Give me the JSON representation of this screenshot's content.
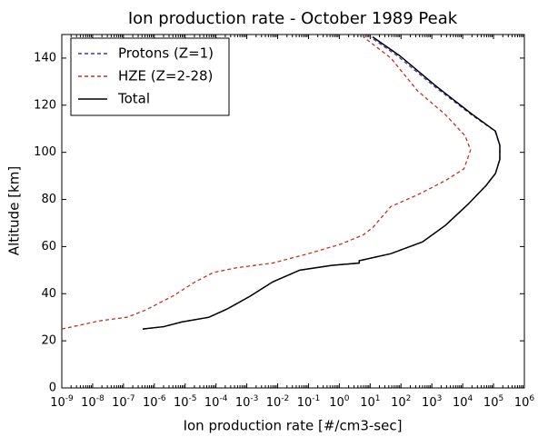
{
  "chart_data": {
    "type": "line",
    "title": "Ion production rate - October 1989 Peak",
    "x_label": "Ion production rate [#/cm3-sec]",
    "y_label": "Altitude [km]",
    "xscale": "log",
    "xlim": [
      1e-09,
      1000000.0
    ],
    "xticks": [
      {
        "value": 1e-09,
        "label": "10-9"
      },
      {
        "value": 1e-08,
        "label": "10-8"
      },
      {
        "value": 1e-07,
        "label": "10-7"
      },
      {
        "value": 1e-06,
        "label": "10-6"
      },
      {
        "value": 1e-05,
        "label": "10-5"
      },
      {
        "value": 0.0001,
        "label": "10-4"
      },
      {
        "value": 0.001,
        "label": "10-3"
      },
      {
        "value": 0.01,
        "label": "10-2"
      },
      {
        "value": 0.1,
        "label": "10-1"
      },
      {
        "value": 1,
        "label": "100"
      },
      {
        "value": 10,
        "label": "101"
      },
      {
        "value": 100,
        "label": "102"
      },
      {
        "value": 1000,
        "label": "103"
      },
      {
        "value": 10000,
        "label": "104"
      },
      {
        "value": 100000,
        "label": "105"
      },
      {
        "value": 1000000,
        "label": "106"
      }
    ],
    "ylim": [
      0,
      150
    ],
    "yticks": [
      0,
      20,
      40,
      60,
      80,
      100,
      120,
      140
    ],
    "legend": "upper left",
    "series": [
      {
        "name": "Protons (Z=1)",
        "color": "#3a3aa8",
        "dash": true,
        "x": [
          4.2e-07,
          2e-06,
          7.8e-06,
          5.9e-05,
          0.00023,
          0.0013,
          0.0069,
          0.052,
          0.56,
          4.4,
          4.4,
          47,
          500,
          2750,
          15000,
          58000,
          115000,
          160000,
          160000,
          112000,
          19000,
          1200,
          75,
          10
        ],
        "y": [
          25,
          26,
          28,
          30,
          33.5,
          39,
          45,
          50,
          52,
          53,
          54,
          57,
          62,
          69,
          78,
          86,
          91,
          97,
          103,
          109,
          116,
          128,
          141,
          149
        ]
      },
      {
        "name": "HZE (Z=2-28)",
        "color": "#c0302a",
        "dash": true,
        "x": [
          1e-09,
          1.7e-08,
          1.3e-07,
          5.1e-07,
          4e-06,
          2.1e-05,
          8.3e-05,
          0.00046,
          0.0069,
          0.1,
          1.1,
          6,
          12,
          47,
          350,
          2750,
          11000,
          18000,
          12000,
          2750,
          350,
          47,
          6
        ],
        "y": [
          25,
          28.5,
          30,
          33,
          39,
          45,
          49,
          51,
          53,
          57,
          61,
          65,
          68,
          77,
          82,
          88,
          93,
          101,
          107,
          116,
          126,
          140,
          149
        ]
      },
      {
        "name": "Total",
        "color": "#000000",
        "dash": false,
        "x": [
          4.2e-07,
          2e-06,
          7.8e-06,
          5.9e-05,
          0.00023,
          0.0013,
          0.0069,
          0.052,
          0.56,
          4.4,
          4.4,
          47,
          500,
          2750,
          15000,
          58000,
          115000,
          160000,
          160000,
          115000,
          21000,
          1400,
          91,
          12
        ],
        "y": [
          25,
          26,
          28,
          30,
          33.5,
          39,
          45,
          50,
          52,
          53,
          54,
          57,
          62,
          69,
          78,
          86,
          91,
          97,
          103,
          109,
          116,
          128,
          141,
          149
        ]
      }
    ]
  }
}
